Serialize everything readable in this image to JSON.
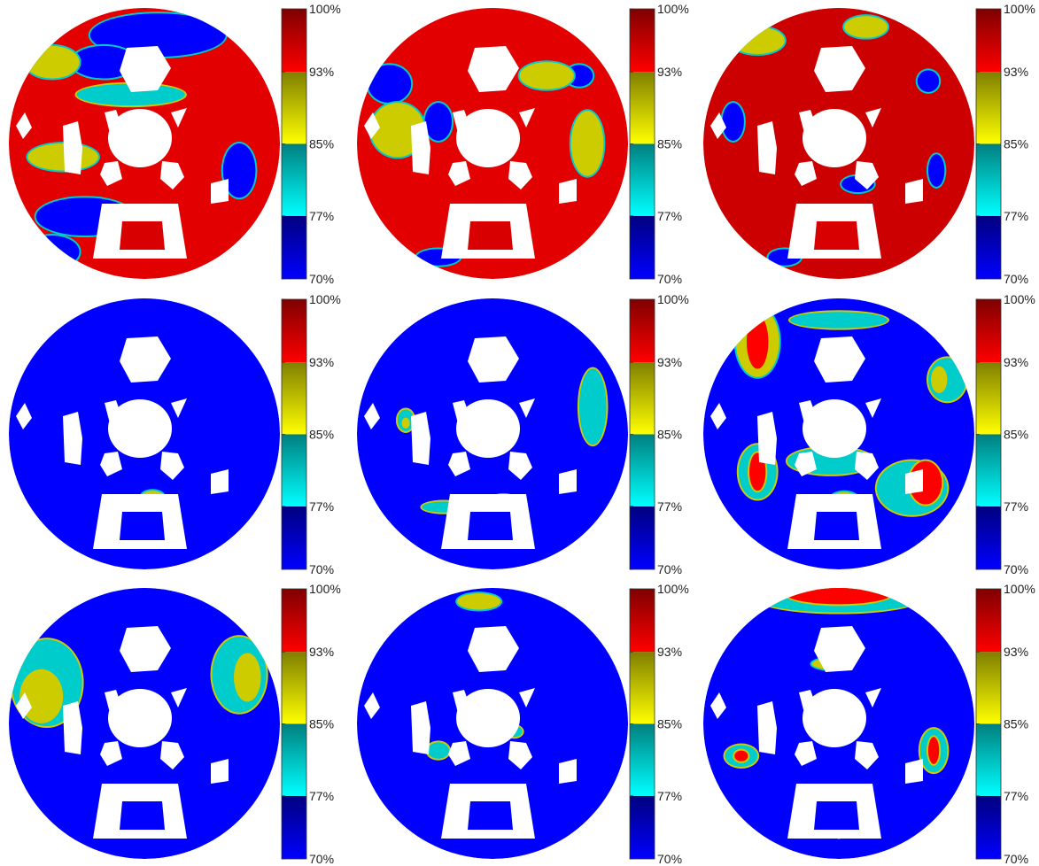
{
  "chart_data": {
    "type": "heatmap",
    "layout": "3x3 grid of circular contour maps",
    "colorbar": {
      "ticks": [
        "100%",
        "93%",
        "85%",
        "77%",
        "70%"
      ],
      "tick_values": [
        100,
        93,
        85,
        77,
        70
      ],
      "range": [
        70,
        100
      ],
      "bands": [
        {
          "from": 70,
          "to": 77,
          "colors": [
            "#0000ff",
            "#00007f"
          ]
        },
        {
          "from": 77,
          "to": 85,
          "colors": [
            "#00ffff",
            "#007f7f"
          ]
        },
        {
          "from": 85,
          "to": 93,
          "colors": [
            "#ffff00",
            "#7f7f00"
          ]
        },
        {
          "from": 93,
          "to": 100,
          "colors": [
            "#ff0000",
            "#7f0000"
          ]
        }
      ]
    },
    "panels": [
      {
        "row": 1,
        "col": 1,
        "dominant": "red",
        "base_color": "#e20000",
        "patches": [
          {
            "color": "#0000ff",
            "x": 0.55,
            "y": 0.1,
            "rx": 0.25,
            "ry": 0.08
          },
          {
            "color": "#0000ff",
            "x": 0.35,
            "y": 0.2,
            "rx": 0.12,
            "ry": 0.06
          },
          {
            "color": "#0000ff",
            "x": 0.28,
            "y": 0.77,
            "rx": 0.18,
            "ry": 0.07
          },
          {
            "color": "#0000ff",
            "x": 0.85,
            "y": 0.6,
            "rx": 0.06,
            "ry": 0.1
          },
          {
            "color": "#0000ff",
            "x": 0.16,
            "y": 0.9,
            "rx": 0.1,
            "ry": 0.06
          },
          {
            "color": "#cccc00",
            "x": 0.2,
            "y": 0.55,
            "rx": 0.13,
            "ry": 0.05
          },
          {
            "color": "#cccc00",
            "x": 0.16,
            "y": 0.2,
            "rx": 0.1,
            "ry": 0.06
          },
          {
            "color": "#00cccc",
            "x": 0.45,
            "y": 0.32,
            "rx": 0.2,
            "ry": 0.04
          }
        ]
      },
      {
        "row": 1,
        "col": 2,
        "dominant": "red",
        "base_color": "#e20000",
        "patches": [
          {
            "color": "#0000ff",
            "x": 0.12,
            "y": 0.28,
            "rx": 0.08,
            "ry": 0.07
          },
          {
            "color": "#0000ff",
            "x": 0.3,
            "y": 0.42,
            "rx": 0.05,
            "ry": 0.07
          },
          {
            "color": "#0000ff",
            "x": 0.82,
            "y": 0.25,
            "rx": 0.05,
            "ry": 0.04
          },
          {
            "color": "#0000ff",
            "x": 0.3,
            "y": 0.92,
            "rx": 0.08,
            "ry": 0.03
          },
          {
            "color": "#cccc00",
            "x": 0.15,
            "y": 0.45,
            "rx": 0.1,
            "ry": 0.1
          },
          {
            "color": "#cccc00",
            "x": 0.85,
            "y": 0.5,
            "rx": 0.06,
            "ry": 0.12
          },
          {
            "color": "#cccc00",
            "x": 0.7,
            "y": 0.25,
            "rx": 0.1,
            "ry": 0.05
          }
        ]
      },
      {
        "row": 1,
        "col": 3,
        "dominant": "red",
        "base_color": "#cc0000",
        "patches": [
          {
            "color": "#0000ff",
            "x": 0.11,
            "y": 0.42,
            "rx": 0.04,
            "ry": 0.07
          },
          {
            "color": "#0000ff",
            "x": 0.83,
            "y": 0.27,
            "rx": 0.04,
            "ry": 0.04
          },
          {
            "color": "#0000ff",
            "x": 0.86,
            "y": 0.6,
            "rx": 0.03,
            "ry": 0.06
          },
          {
            "color": "#0000ff",
            "x": 0.3,
            "y": 0.92,
            "rx": 0.06,
            "ry": 0.03
          },
          {
            "color": "#0000ff",
            "x": 0.57,
            "y": 0.65,
            "rx": 0.06,
            "ry": 0.03
          },
          {
            "color": "#cccc00",
            "x": 0.2,
            "y": 0.12,
            "rx": 0.1,
            "ry": 0.05
          },
          {
            "color": "#cccc00",
            "x": 0.6,
            "y": 0.07,
            "rx": 0.08,
            "ry": 0.04
          }
        ]
      },
      {
        "row": 2,
        "col": 1,
        "dominant": "blue",
        "base_color": "#0000ff",
        "patches": [
          {
            "color": "#cccc00",
            "x": 0.53,
            "y": 0.73,
            "rx": 0.04,
            "ry": 0.02
          },
          {
            "color": "#ff0000",
            "x": 0.56,
            "y": 0.74,
            "rx": 0.02,
            "ry": 0.015
          }
        ]
      },
      {
        "row": 2,
        "col": 2,
        "dominant": "blue",
        "base_color": "#0000ff",
        "patches": [
          {
            "color": "#00cccc",
            "x": 0.87,
            "y": 0.4,
            "rx": 0.05,
            "ry": 0.14
          },
          {
            "color": "#00cccc",
            "x": 0.18,
            "y": 0.45,
            "rx": 0.03,
            "ry": 0.04
          },
          {
            "color": "#cccc00",
            "x": 0.18,
            "y": 0.46,
            "rx": 0.015,
            "ry": 0.02
          },
          {
            "color": "#00cccc",
            "x": 0.32,
            "y": 0.77,
            "rx": 0.08,
            "ry": 0.02
          },
          {
            "color": "#cccc00",
            "x": 0.54,
            "y": 0.74,
            "rx": 0.04,
            "ry": 0.015
          }
        ]
      },
      {
        "row": 2,
        "col": 3,
        "dominant": "blue",
        "base_color": "#0000ff",
        "patches": [
          {
            "color": "#cccc00",
            "x": 0.2,
            "y": 0.16,
            "rx": 0.08,
            "ry": 0.13
          },
          {
            "color": "#ff0000",
            "x": 0.2,
            "y": 0.16,
            "rx": 0.04,
            "ry": 0.1
          },
          {
            "color": "#00cccc",
            "x": 0.9,
            "y": 0.3,
            "rx": 0.07,
            "ry": 0.08
          },
          {
            "color": "#cccc00",
            "x": 0.87,
            "y": 0.3,
            "rx": 0.03,
            "ry": 0.05
          },
          {
            "color": "#00cccc",
            "x": 0.2,
            "y": 0.64,
            "rx": 0.07,
            "ry": 0.1
          },
          {
            "color": "#ff0000",
            "x": 0.2,
            "y": 0.64,
            "rx": 0.03,
            "ry": 0.07
          },
          {
            "color": "#00cccc",
            "x": 0.77,
            "y": 0.7,
            "rx": 0.13,
            "ry": 0.1
          },
          {
            "color": "#ff0000",
            "x": 0.82,
            "y": 0.68,
            "rx": 0.06,
            "ry": 0.08
          },
          {
            "color": "#00cccc",
            "x": 0.47,
            "y": 0.6,
            "rx": 0.16,
            "ry": 0.05
          },
          {
            "color": "#cccc00",
            "x": 0.52,
            "y": 0.74,
            "rx": 0.05,
            "ry": 0.025
          },
          {
            "color": "#00cccc",
            "x": 0.5,
            "y": 0.08,
            "rx": 0.18,
            "ry": 0.03
          }
        ]
      },
      {
        "row": 3,
        "col": 1,
        "dominant": "blue",
        "base_color": "#0000ff",
        "patches": [
          {
            "color": "#00cccc",
            "x": 0.14,
            "y": 0.35,
            "rx": 0.13,
            "ry": 0.16
          },
          {
            "color": "#cccc00",
            "x": 0.12,
            "y": 0.4,
            "rx": 0.08,
            "ry": 0.1
          },
          {
            "color": "#00cccc",
            "x": 0.85,
            "y": 0.32,
            "rx": 0.1,
            "ry": 0.14
          },
          {
            "color": "#cccc00",
            "x": 0.88,
            "y": 0.33,
            "rx": 0.05,
            "ry": 0.09
          },
          {
            "color": "#00cccc",
            "x": 0.1,
            "y": 0.94,
            "rx": 0.04,
            "ry": 0.02
          }
        ]
      },
      {
        "row": 3,
        "col": 2,
        "dominant": "blue",
        "base_color": "#0000ff",
        "patches": [
          {
            "color": "#cccc00",
            "x": 0.45,
            "y": 0.05,
            "rx": 0.08,
            "ry": 0.03
          },
          {
            "color": "#00cccc",
            "x": 0.3,
            "y": 0.6,
            "rx": 0.04,
            "ry": 0.03
          },
          {
            "color": "#00cccc",
            "x": 0.58,
            "y": 0.53,
            "rx": 0.03,
            "ry": 0.02
          }
        ]
      },
      {
        "row": 3,
        "col": 3,
        "dominant": "blue",
        "base_color": "#0000ff",
        "patches": [
          {
            "color": "#00cccc",
            "x": 0.5,
            "y": 0.04,
            "rx": 0.3,
            "ry": 0.05
          },
          {
            "color": "#ff0000",
            "x": 0.5,
            "y": 0.02,
            "rx": 0.2,
            "ry": 0.04
          },
          {
            "color": "#cccc00",
            "x": 0.47,
            "y": 0.28,
            "rx": 0.07,
            "ry": 0.02
          },
          {
            "color": "#00cccc",
            "x": 0.14,
            "y": 0.62,
            "rx": 0.06,
            "ry": 0.04
          },
          {
            "color": "#ff0000",
            "x": 0.14,
            "y": 0.62,
            "rx": 0.025,
            "ry": 0.02
          },
          {
            "color": "#00cccc",
            "x": 0.85,
            "y": 0.6,
            "rx": 0.05,
            "ry": 0.08
          },
          {
            "color": "#ff0000",
            "x": 0.85,
            "y": 0.6,
            "rx": 0.02,
            "ry": 0.05
          },
          {
            "color": "#00cccc",
            "x": 0.5,
            "y": 0.88,
            "rx": 0.02,
            "ry": 0.04
          }
        ]
      }
    ]
  }
}
